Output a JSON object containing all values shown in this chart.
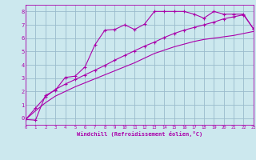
{
  "xlabel": "Windchill (Refroidissement éolien,°C)",
  "bg_color": "#cce8ee",
  "line_color": "#aa00aa",
  "grid_color": "#99bbcc",
  "xlim": [
    0,
    23
  ],
  "ylim": [
    -0.5,
    8.5
  ],
  "xticks": [
    0,
    1,
    2,
    3,
    4,
    5,
    6,
    7,
    8,
    9,
    10,
    11,
    12,
    13,
    14,
    15,
    16,
    17,
    18,
    19,
    20,
    21,
    22,
    23
  ],
  "yticks": [
    0,
    1,
    2,
    3,
    4,
    5,
    6,
    7,
    8
  ],
  "line1_x": [
    0,
    1,
    2,
    3,
    4,
    5,
    6,
    7,
    8,
    9,
    10,
    11,
    12,
    13,
    14,
    15,
    16,
    17,
    18,
    19,
    20,
    21,
    22,
    23
  ],
  "line1_y": [
    -0.1,
    -0.15,
    1.7,
    2.1,
    3.05,
    3.15,
    3.85,
    5.5,
    6.6,
    6.65,
    7.0,
    6.65,
    7.05,
    8.0,
    8.0,
    8.0,
    8.0,
    7.8,
    7.5,
    8.0,
    7.8,
    7.8,
    7.8,
    6.7
  ],
  "line2_x": [
    0,
    1,
    2,
    3,
    4,
    5,
    6,
    7,
    8,
    9,
    10,
    11,
    12,
    13,
    14,
    15,
    16,
    17,
    18,
    19,
    20,
    21,
    22,
    23
  ],
  "line2_y": [
    -0.1,
    0.55,
    1.15,
    1.65,
    2.0,
    2.35,
    2.65,
    2.95,
    3.25,
    3.55,
    3.85,
    4.15,
    4.5,
    4.85,
    5.1,
    5.35,
    5.55,
    5.75,
    5.9,
    6.0,
    6.1,
    6.2,
    6.35,
    6.5
  ],
  "line3_x": [
    0,
    1,
    2,
    3,
    4,
    5,
    6,
    7,
    8,
    9,
    10,
    11,
    12,
    13,
    14,
    15,
    16,
    17,
    18,
    19,
    20,
    21,
    22,
    23
  ],
  "line3_y": [
    -0.1,
    0.75,
    1.6,
    2.15,
    2.55,
    2.9,
    3.25,
    3.6,
    3.95,
    4.35,
    4.7,
    5.05,
    5.4,
    5.7,
    6.05,
    6.35,
    6.6,
    6.8,
    7.0,
    7.2,
    7.45,
    7.6,
    7.75,
    6.7
  ]
}
